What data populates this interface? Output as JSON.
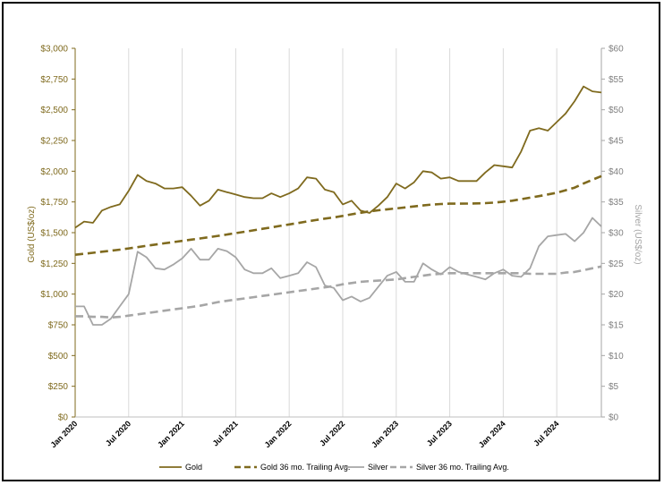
{
  "chart_data": {
    "type": "line",
    "title": "",
    "xlabel": "",
    "ylabel_left": "Gold (US$/oz)",
    "ylabel_right": "Silver (US$/oz)",
    "ylim_left": [
      0,
      3000
    ],
    "ylim_right": [
      0,
      60
    ],
    "xlim": [
      "2020-01",
      "2024-12"
    ],
    "grid": "vertical gridlines at tick labels",
    "legend_position": "bottom",
    "left_ticks": [
      "$0",
      "$250",
      "$500",
      "$750",
      "$1,000",
      "$1,250",
      "$1,500",
      "$1,750",
      "$2,000",
      "$2,250",
      "$2,500",
      "$2,750",
      "$3,000"
    ],
    "right_ticks": [
      "$0",
      "$5",
      "$10",
      "$15",
      "$20",
      "$25",
      "$30",
      "$35",
      "$40",
      "$45",
      "$50",
      "$55",
      "$60"
    ],
    "x_tick_labels": [
      "Jan 2020",
      "Jul 2020",
      "Jan 2021",
      "Jul 2021",
      "Jan 2022",
      "Jul 2022",
      "Jan 2023",
      "Jul 2023",
      "Jan 2024",
      "Jul 2024"
    ],
    "x_tick_dates": [
      "2020-01",
      "2020-07",
      "2021-01",
      "2021-07",
      "2022-01",
      "2022-07",
      "2023-01",
      "2023-07",
      "2024-01",
      "2024-07"
    ],
    "months": [
      "2020-01",
      "2020-02",
      "2020-03",
      "2020-04",
      "2020-05",
      "2020-06",
      "2020-07",
      "2020-08",
      "2020-09",
      "2020-10",
      "2020-11",
      "2020-12",
      "2021-01",
      "2021-02",
      "2021-03",
      "2021-04",
      "2021-05",
      "2021-06",
      "2021-07",
      "2021-08",
      "2021-09",
      "2021-10",
      "2021-11",
      "2021-12",
      "2022-01",
      "2022-02",
      "2022-03",
      "2022-04",
      "2022-05",
      "2022-06",
      "2022-07",
      "2022-08",
      "2022-09",
      "2022-10",
      "2022-11",
      "2022-12",
      "2023-01",
      "2023-02",
      "2023-03",
      "2023-04",
      "2023-05",
      "2023-06",
      "2023-07",
      "2023-08",
      "2023-09",
      "2023-10",
      "2023-11",
      "2023-12",
      "2024-01",
      "2024-02",
      "2024-03",
      "2024-04",
      "2024-05",
      "2024-06",
      "2024-07",
      "2024-08",
      "2024-09",
      "2024-10",
      "2024-11",
      "2024-12"
    ],
    "series": [
      {
        "name": "Gold",
        "axis": "left",
        "style": "solid",
        "color": "#7f6a1e",
        "values": [
          1540,
          1590,
          1580,
          1680,
          1710,
          1730,
          1840,
          1970,
          1920,
          1900,
          1860,
          1860,
          1870,
          1800,
          1720,
          1760,
          1850,
          1830,
          1810,
          1790,
          1780,
          1780,
          1820,
          1790,
          1820,
          1860,
          1950,
          1940,
          1850,
          1830,
          1730,
          1760,
          1680,
          1660,
          1720,
          1790,
          1900,
          1860,
          1910,
          2000,
          1990,
          1940,
          1950,
          1920,
          1920,
          1920,
          1990,
          2050,
          2040,
          2030,
          2160,
          2330,
          2350,
          2330,
          2400,
          2470,
          2570,
          2690,
          2650,
          2640
        ]
      },
      {
        "name": "Gold 36 mo. Trailing Avg.",
        "axis": "left",
        "style": "dashed",
        "color": "#7f6a1e",
        "values": [
          1320,
          1328,
          1336,
          1345,
          1353,
          1362,
          1372,
          1382,
          1393,
          1403,
          1413,
          1423,
          1433,
          1443,
          1453,
          1463,
          1474,
          1485,
          1496,
          1507,
          1519,
          1531,
          1543,
          1555,
          1567,
          1579,
          1591,
          1603,
          1614,
          1624,
          1636,
          1649,
          1662,
          1673,
          1682,
          1690,
          1697,
          1705,
          1713,
          1721,
          1729,
          1733,
          1736,
          1736,
          1737,
          1738,
          1740,
          1745,
          1752,
          1760,
          1772,
          1785,
          1797,
          1811,
          1825,
          1845,
          1866,
          1900,
          1930,
          1960
        ]
      },
      {
        "name": "Silver",
        "axis": "right",
        "style": "solid",
        "color": "#a6a6a6",
        "values": [
          18.0,
          18.0,
          15.0,
          15.0,
          16.0,
          18.0,
          20.0,
          26.9,
          26.0,
          24.2,
          24.0,
          24.8,
          25.8,
          27.4,
          25.6,
          25.6,
          27.4,
          27.0,
          26.0,
          24.0,
          23.4,
          23.4,
          24.2,
          22.6,
          23.0,
          23.4,
          25.2,
          24.4,
          21.4,
          21.0,
          19.0,
          19.6,
          18.8,
          19.4,
          21.2,
          23.0,
          23.6,
          22.0,
          22.0,
          25.0,
          24.0,
          23.2,
          24.4,
          23.6,
          23.2,
          22.8,
          22.4,
          23.4,
          24.0,
          23.0,
          22.8,
          24.2,
          27.8,
          29.4,
          29.6,
          29.8,
          28.6,
          30.0,
          32.4,
          31.0
        ]
      },
      {
        "name": "Silver 36 mo. Trailing Avg.",
        "axis": "right",
        "style": "dashed",
        "color": "#a6a6a6",
        "values": [
          16.4,
          16.4,
          16.3,
          16.3,
          16.2,
          16.3,
          16.5,
          16.7,
          16.9,
          17.1,
          17.3,
          17.5,
          17.7,
          17.9,
          18.1,
          18.4,
          18.7,
          18.9,
          19.1,
          19.3,
          19.5,
          19.7,
          19.9,
          20.1,
          20.3,
          20.5,
          20.7,
          20.9,
          21.1,
          21.3,
          21.6,
          21.8,
          22.0,
          22.1,
          22.2,
          22.3,
          22.4,
          22.6,
          22.8,
          23.0,
          23.2,
          23.3,
          23.4,
          23.4,
          23.4,
          23.4,
          23.4,
          23.4,
          23.4,
          23.4,
          23.4,
          23.3,
          23.3,
          23.3,
          23.3,
          23.5,
          23.6,
          23.9,
          24.2,
          24.5
        ]
      }
    ]
  }
}
